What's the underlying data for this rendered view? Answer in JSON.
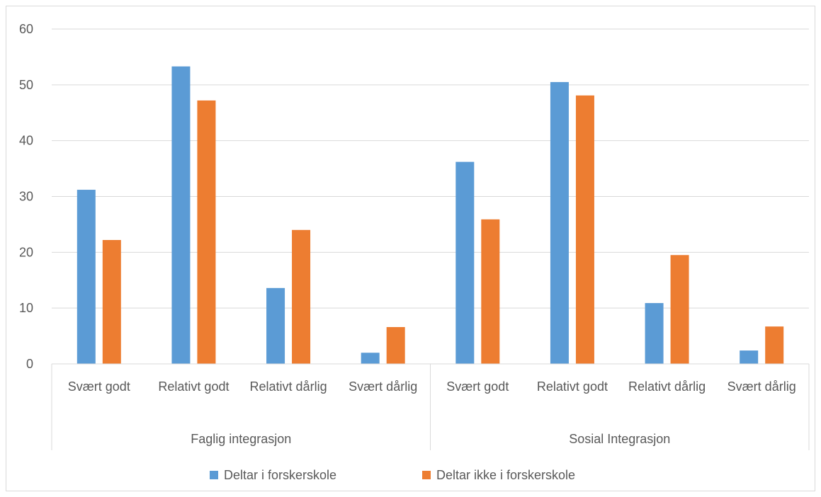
{
  "chart_data": {
    "type": "bar",
    "groups": [
      {
        "label": "Faglig integrasjon",
        "categories": [
          "Svært godt",
          "Relativt godt",
          "Relativt dårlig",
          "Svært dårlig"
        ]
      },
      {
        "label": "Sosial Integrasjon",
        "categories": [
          "Svært godt",
          "Relativt godt",
          "Relativt dårlig",
          "Svært dårlig"
        ]
      }
    ],
    "series": [
      {
        "name": "Deltar i forskerskole",
        "color": "#5b9bd5",
        "values": [
          31.2,
          53.3,
          13.6,
          2.0,
          36.2,
          50.5,
          10.9,
          2.4
        ]
      },
      {
        "name": "Deltar ikke i forskerskole",
        "color": "#ed7d31",
        "values": [
          22.2,
          47.2,
          24.0,
          6.6,
          25.9,
          48.1,
          19.5,
          6.7
        ]
      }
    ],
    "yticks": [
      "0",
      "10",
      "20",
      "30",
      "40",
      "50",
      "60"
    ],
    "ylim": [
      0,
      60
    ],
    "grid": true,
    "legend_position": "bottom"
  }
}
